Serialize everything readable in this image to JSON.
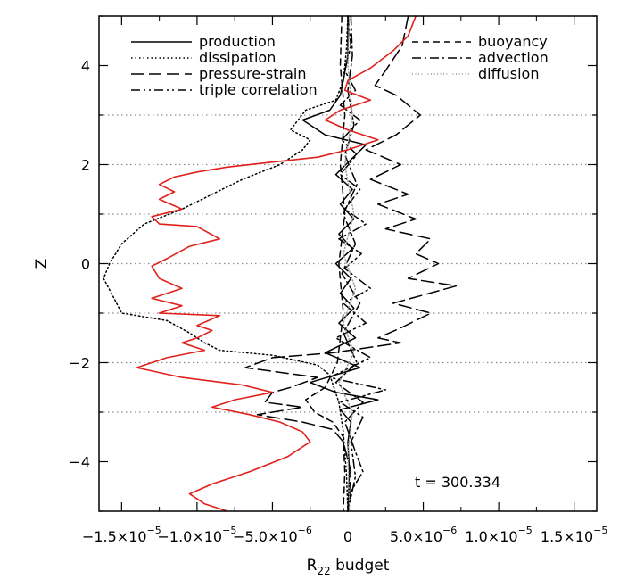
{
  "chart_data": {
    "type": "line",
    "xlabel": "R",
    "xlabel_sub": "22",
    "xlabel_suffix": " budget",
    "ylabel": "Z",
    "xlim": [
      -1.65e-05,
      1.65e-05
    ],
    "ylim": [
      -5,
      5
    ],
    "grid": "horizontal dotted at 3, 2, 1, 0, -1, -2, -3",
    "xticks": [
      {
        "value": -1.5e-05,
        "label": "−1.5×10",
        "exp": "−5"
      },
      {
        "value": -1e-05,
        "label": "−1.0×10",
        "exp": "−5"
      },
      {
        "value": -5e-06,
        "label": "−5.0×10",
        "exp": "−6"
      },
      {
        "value": 0,
        "label": "0",
        "exp": ""
      },
      {
        "value": 5e-06,
        "label": "5.0×10",
        "exp": "−6"
      },
      {
        "value": 1e-05,
        "label": "1.0×10",
        "exp": "−5"
      },
      {
        "value": 1.5e-05,
        "label": "1.5×10",
        "exp": "−5"
      }
    ],
    "yticks": [
      {
        "value": 4,
        "label": "4"
      },
      {
        "value": 2,
        "label": "2"
      },
      {
        "value": 0,
        "label": "0"
      },
      {
        "value": -2,
        "label": "−2"
      },
      {
        "value": -4,
        "label": "−4"
      }
    ],
    "annotation": "t  =  300.334",
    "legend_placement": "top",
    "series": [
      {
        "name": "production",
        "color": "#000000",
        "dash": "solid",
        "points": [
          [
            0,
            5
          ],
          [
            0,
            4.2
          ],
          [
            -3e-07,
            3.7
          ],
          [
            -5e-07,
            3.4
          ],
          [
            -1.2e-06,
            3.1
          ],
          [
            -3e-06,
            2.9
          ],
          [
            -1.5e-06,
            2.6
          ],
          [
            1.2e-06,
            2.4
          ],
          [
            2e-07,
            2.1
          ],
          [
            -8e-07,
            1.8
          ],
          [
            3e-07,
            1.5
          ],
          [
            -5e-07,
            1.2
          ],
          [
            4e-07,
            0.9
          ],
          [
            -6e-07,
            0.6
          ],
          [
            3e-07,
            0.3
          ],
          [
            -8e-07,
            0
          ],
          [
            2e-07,
            -0.3
          ],
          [
            -5e-07,
            -0.6
          ],
          [
            4e-07,
            -0.9
          ],
          [
            -6e-07,
            -1.2
          ],
          [
            5e-07,
            -1.5
          ],
          [
            -1.5e-06,
            -1.8
          ],
          [
            8e-07,
            -2.1
          ],
          [
            -2.5e-06,
            -2.4
          ],
          [
            -8e-07,
            -2.6
          ],
          [
            2e-06,
            -2.75
          ],
          [
            -5e-07,
            -2.95
          ],
          [
            2e-07,
            -3.2
          ],
          [
            0,
            -3.6
          ],
          [
            1e-07,
            -4.2
          ],
          [
            0,
            -5
          ]
        ]
      },
      {
        "name": "dissipation",
        "color": "#000000",
        "dash": "dotted",
        "points": [
          [
            0,
            5
          ],
          [
            -1e-07,
            4.3
          ],
          [
            -3e-07,
            3.7
          ],
          [
            -8e-07,
            3.3
          ],
          [
            -2.8e-06,
            3.1
          ],
          [
            -3.8e-06,
            2.7
          ],
          [
            -2.5e-06,
            2.5
          ],
          [
            -3e-06,
            2.3
          ],
          [
            -4.5e-06,
            2.0
          ],
          [
            -7e-06,
            1.7
          ],
          [
            -9e-06,
            1.4
          ],
          [
            -1.1e-05,
            1.1
          ],
          [
            -1.35e-05,
            0.8
          ],
          [
            -1.5e-05,
            0.4
          ],
          [
            -1.58e-05,
            0
          ],
          [
            -1.62e-05,
            -0.3
          ],
          [
            -1.55e-05,
            -0.7
          ],
          [
            -1.5e-05,
            -1.0
          ],
          [
            -1.2e-05,
            -1.15
          ],
          [
            -1.05e-05,
            -1.4
          ],
          [
            -9.5e-06,
            -1.6
          ],
          [
            -8.5e-06,
            -1.75
          ],
          [
            -5e-06,
            -1.85
          ],
          [
            -3.5e-06,
            -1.95
          ],
          [
            -2e-06,
            -2.05
          ],
          [
            -1.2e-06,
            -2.25
          ],
          [
            -6e-07,
            -2.8
          ],
          [
            -3e-07,
            -3.4
          ],
          [
            -1e-07,
            -4.2
          ],
          [
            0,
            -5
          ]
        ]
      },
      {
        "name": "pressure-strain",
        "color": "#000000",
        "dash": "longdash",
        "points": [
          [
            4e-06,
            5
          ],
          [
            3.6e-06,
            4.4
          ],
          [
            2.5e-06,
            3.9
          ],
          [
            1.8e-06,
            3.6
          ],
          [
            3.2e-06,
            3.4
          ],
          [
            4.8e-06,
            3.0
          ],
          [
            3.2e-06,
            2.6
          ],
          [
            1.2e-06,
            2.3
          ],
          [
            3.5e-06,
            2.0
          ],
          [
            1.5e-06,
            1.7
          ],
          [
            4e-06,
            1.4
          ],
          [
            2e-06,
            1.2
          ],
          [
            4.5e-06,
            0.9
          ],
          [
            2.5e-06,
            0.7
          ],
          [
            5.5e-06,
            0.5
          ],
          [
            4.5e-06,
            0.2
          ],
          [
            6e-06,
            0
          ],
          [
            4e-06,
            -0.3
          ],
          [
            7.2e-06,
            -0.45
          ],
          [
            3e-06,
            -0.8
          ],
          [
            5.5e-06,
            -1.0
          ],
          [
            3.5e-06,
            -1.3
          ],
          [
            2e-06,
            -1.5
          ],
          [
            3.5e-06,
            -1.6
          ],
          [
            -1e-06,
            -1.8
          ],
          [
            -5e-06,
            -1.9
          ],
          [
            -6.8e-06,
            -2.1
          ],
          [
            -2e-06,
            -2.3
          ],
          [
            -3.8e-06,
            -2.5
          ],
          [
            -5e-06,
            -2.6
          ],
          [
            -5.5e-06,
            -2.8
          ],
          [
            -3e-06,
            -2.9
          ],
          [
            -6e-06,
            -3.05
          ],
          [
            -3e-06,
            -3.2
          ],
          [
            -1e-06,
            -3.35
          ],
          [
            -3e-07,
            -3.6
          ],
          [
            2e-07,
            -4.2
          ],
          [
            0,
            -5
          ]
        ]
      },
      {
        "name": "triple correlation",
        "color": "#000000",
        "dash": "dashdotdot",
        "points": [
          [
            0,
            5
          ],
          [
            2e-07,
            4.4
          ],
          [
            -2e-07,
            3.9
          ],
          [
            5e-07,
            3.5
          ],
          [
            -5e-07,
            3.2
          ],
          [
            8e-07,
            2.9
          ],
          [
            -4e-07,
            2.5
          ],
          [
            6e-07,
            2.2
          ],
          [
            -5e-07,
            1.8
          ],
          [
            8e-07,
            1.5
          ],
          [
            -2e-07,
            1.1
          ],
          [
            1.2e-06,
            0.8
          ],
          [
            -6e-07,
            0.5
          ],
          [
            9e-07,
            0.2
          ],
          [
            -2e-07,
            -0.1
          ],
          [
            1.5e-06,
            -0.5
          ],
          [
            -3e-07,
            -0.8
          ],
          [
            1.2e-06,
            -1.2
          ],
          [
            -8e-07,
            -1.5
          ],
          [
            1.5e-06,
            -1.9
          ],
          [
            -1.2e-06,
            -2.3
          ],
          [
            2.5e-06,
            -2.55
          ],
          [
            -5e-07,
            -2.8
          ],
          [
            1e-06,
            -3.1
          ],
          [
            2e-07,
            -3.6
          ],
          [
            5e-07,
            -4.3
          ],
          [
            0,
            -5
          ]
        ]
      },
      {
        "name": "buoyancy",
        "color": "#000000",
        "dash": "dashed",
        "points": [
          [
            -4e-07,
            5
          ],
          [
            -5e-07,
            4.0
          ],
          [
            -2e-07,
            3.0
          ],
          [
            -5e-07,
            2.0
          ],
          [
            -2e-07,
            1.0
          ],
          [
            -6e-07,
            0
          ],
          [
            -3e-07,
            -1.0
          ],
          [
            -7e-07,
            -2.0
          ],
          [
            -1.5e-06,
            -2.5
          ],
          [
            -2.8e-06,
            -2.75
          ],
          [
            -2.2e-06,
            -3.0
          ],
          [
            -1e-06,
            -3.2
          ],
          [
            -3e-07,
            -3.5
          ],
          [
            -2e-07,
            -4.2
          ],
          [
            -3e-07,
            -5
          ]
        ]
      },
      {
        "name": "advection",
        "color": "#000000",
        "dash": "dashdot",
        "points": [
          [
            2e-07,
            5
          ],
          [
            3e-07,
            4.2
          ],
          [
            0,
            3.5
          ],
          [
            4e-07,
            2.8
          ],
          [
            -2e-07,
            2.2
          ],
          [
            6e-07,
            1.6
          ],
          [
            -3e-07,
            1.0
          ],
          [
            5e-07,
            0.4
          ],
          [
            -4e-07,
            -0.2
          ],
          [
            8e-07,
            -0.8
          ],
          [
            -3e-07,
            -1.4
          ],
          [
            6e-07,
            -2.0
          ],
          [
            -8e-07,
            -2.4
          ],
          [
            1e-06,
            -2.8
          ],
          [
            -2e-07,
            -3.2
          ],
          [
            5e-07,
            -3.8
          ],
          [
            1e-06,
            -4.2
          ],
          [
            2e-07,
            -4.6
          ],
          [
            0,
            -5
          ]
        ]
      },
      {
        "name": "diffusion",
        "color": "#999999",
        "dash": "finedot",
        "points": [
          [
            1e-07,
            5
          ],
          [
            0,
            4.0
          ],
          [
            3e-07,
            3.0
          ],
          [
            -2e-07,
            2.0
          ],
          [
            4e-07,
            1.0
          ],
          [
            -3e-07,
            0.2
          ],
          [
            5e-07,
            -0.5
          ],
          [
            -3e-07,
            -1.2
          ],
          [
            4e-07,
            -1.8
          ],
          [
            -6e-07,
            -2.4
          ],
          [
            3e-07,
            -3.0
          ],
          [
            0,
            -3.8
          ],
          [
            1e-07,
            -5
          ]
        ]
      },
      {
        "name": "",
        "color": "#e0201b",
        "dash": "solid",
        "points": [
          [
            4.5e-06,
            5
          ],
          [
            4e-06,
            4.6
          ],
          [
            3e-06,
            4.3
          ],
          [
            1.5e-06,
            3.95
          ],
          [
            0,
            3.7
          ],
          [
            -2e-07,
            3.5
          ],
          [
            1.5e-06,
            3.3
          ],
          [
            -5e-07,
            3.1
          ],
          [
            -1.5e-06,
            2.9
          ],
          [
            0,
            2.7
          ],
          [
            2e-06,
            2.5
          ],
          [
            0,
            2.3
          ],
          [
            -2e-06,
            2.15
          ],
          [
            -5e-06,
            2.05
          ],
          [
            -8e-06,
            1.95
          ],
          [
            -1e-05,
            1.85
          ],
          [
            -1.15e-05,
            1.75
          ],
          [
            -1.25e-05,
            1.6
          ],
          [
            -1.15e-05,
            1.45
          ],
          [
            -1.25e-05,
            1.3
          ],
          [
            -1.1e-05,
            1.1
          ],
          [
            -1.3e-05,
            0.95
          ],
          [
            -1.25e-05,
            0.8
          ],
          [
            -1e-05,
            0.75
          ],
          [
            -8.5e-06,
            0.5
          ],
          [
            -1.05e-05,
            0.35
          ],
          [
            -1.2e-05,
            0.1
          ],
          [
            -1.3e-05,
            -0.05
          ],
          [
            -1.25e-05,
            -0.3
          ],
          [
            -1.1e-05,
            -0.5
          ],
          [
            -1.3e-05,
            -0.7
          ],
          [
            -1.1e-05,
            -0.85
          ],
          [
            -1.25e-05,
            -1.0
          ],
          [
            -8.5e-06,
            -1.05
          ],
          [
            -1e-05,
            -1.25
          ],
          [
            -9e-06,
            -1.35
          ],
          [
            -1e-05,
            -1.5
          ],
          [
            -1.1e-05,
            -1.6
          ],
          [
            -9.5e-06,
            -1.75
          ],
          [
            -1.2e-05,
            -1.9
          ],
          [
            -1.3e-05,
            -2.0
          ],
          [
            -1.4e-05,
            -2.1
          ],
          [
            -1.1e-05,
            -2.3
          ],
          [
            -7e-06,
            -2.45
          ],
          [
            -5e-06,
            -2.6
          ],
          [
            -7.5e-06,
            -2.75
          ],
          [
            -9e-06,
            -2.9
          ],
          [
            -6.5e-06,
            -3.05
          ],
          [
            -4.5e-06,
            -3.2
          ],
          [
            -3e-06,
            -3.4
          ],
          [
            -2.5e-06,
            -3.6
          ],
          [
            -4e-06,
            -3.9
          ],
          [
            -6.5e-06,
            -4.2
          ],
          [
            -9e-06,
            -4.45
          ],
          [
            -1.05e-05,
            -4.65
          ],
          [
            -9.5e-06,
            -4.85
          ],
          [
            -8e-06,
            -5
          ]
        ]
      }
    ]
  }
}
